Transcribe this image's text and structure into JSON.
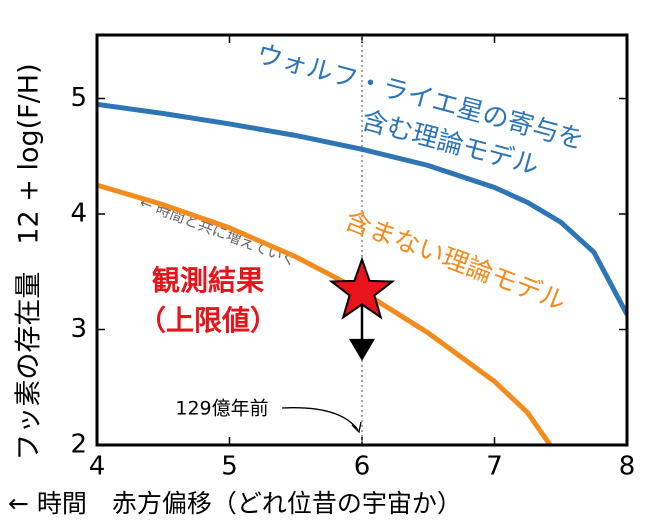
{
  "chart_data": {
    "type": "line",
    "y_label": "フッ素の存在量　12 + log(F/H)",
    "x_label": "← 時間　赤方偏移（どれ位昔の宇宙か）",
    "xlim": [
      4,
      8
    ],
    "xticks": [
      4,
      5,
      6,
      7,
      8
    ],
    "ylim": [
      2,
      5.55
    ],
    "yticks": [
      2,
      3,
      4,
      5
    ],
    "series": [
      {
        "name": "ウォルフ・ライエ星の寄与を含む理論モデル",
        "label_lines": [
          "ウォルフ・ライエ星の寄与を",
          "含む理論モデル"
        ],
        "color": "#2e75b6",
        "x": [
          4,
          4.5,
          5,
          5.5,
          6,
          6.5,
          7,
          7.25,
          7.5,
          7.75,
          8
        ],
        "values": [
          4.95,
          4.87,
          4.78,
          4.68,
          4.56,
          4.42,
          4.23,
          4.1,
          3.93,
          3.67,
          3.13
        ]
      },
      {
        "name": "含まない理論モデル",
        "label_lines": [
          "含まない理論モデル"
        ],
        "color": "#f28c1e",
        "x": [
          4,
          4.5,
          5,
          5.5,
          6,
          6.5,
          7,
          7.25,
          7.42
        ],
        "values": [
          4.25,
          4.08,
          3.88,
          3.63,
          3.33,
          2.97,
          2.55,
          2.28,
          2.0
        ]
      }
    ],
    "upper_limit": {
      "label_lines": [
        "観測結果",
        "（上限値）"
      ],
      "x": 6,
      "y": 3.33,
      "arrow_to": 2.78,
      "color": "#e8141c"
    },
    "annotations": {
      "trend": "← 時間と共に増えていく",
      "age": "129億年前"
    }
  }
}
